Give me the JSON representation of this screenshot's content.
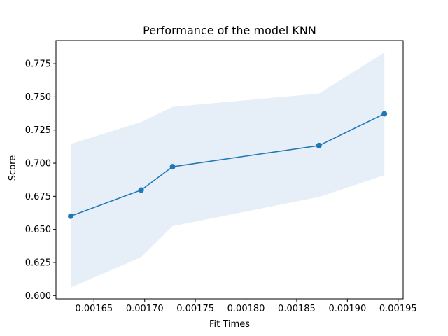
{
  "chart_data": {
    "type": "line",
    "title": "Performance of the model KNN",
    "xlabel": "Fit Times",
    "ylabel": "Score",
    "xlim": [
      0.0016125,
      0.001955
    ],
    "ylim": [
      0.5975,
      0.7925
    ],
    "xticks": [
      {
        "value": 0.00165,
        "label": "0.00165"
      },
      {
        "value": 0.0017,
        "label": "0.00170"
      },
      {
        "value": 0.00175,
        "label": "0.00175"
      },
      {
        "value": 0.0018,
        "label": "0.00180"
      },
      {
        "value": 0.00185,
        "label": "0.00185"
      },
      {
        "value": 0.0019,
        "label": "0.00190"
      },
      {
        "value": 0.00195,
        "label": "0.00195"
      }
    ],
    "yticks": [
      {
        "value": 0.6,
        "label": "0.600"
      },
      {
        "value": 0.625,
        "label": "0.625"
      },
      {
        "value": 0.65,
        "label": "0.650"
      },
      {
        "value": 0.675,
        "label": "0.675"
      },
      {
        "value": 0.7,
        "label": "0.700"
      },
      {
        "value": 0.725,
        "label": "0.725"
      },
      {
        "value": 0.75,
        "label": "0.750"
      },
      {
        "value": 0.775,
        "label": "0.775"
      }
    ],
    "grid": false,
    "series": [
      {
        "x": [
          0.001627,
          0.0016965,
          0.0017275,
          0.001872,
          0.0019365
        ],
        "y": [
          0.66,
          0.6797,
          0.6973,
          0.7133,
          0.7373
        ],
        "band_low": [
          0.606,
          0.629,
          0.6525,
          0.6745,
          0.691
        ],
        "band_high": [
          0.7145,
          0.731,
          0.7425,
          0.7525,
          0.7835
        ],
        "color": "#1f77b4",
        "band_color": "#e6eef7"
      }
    ]
  }
}
